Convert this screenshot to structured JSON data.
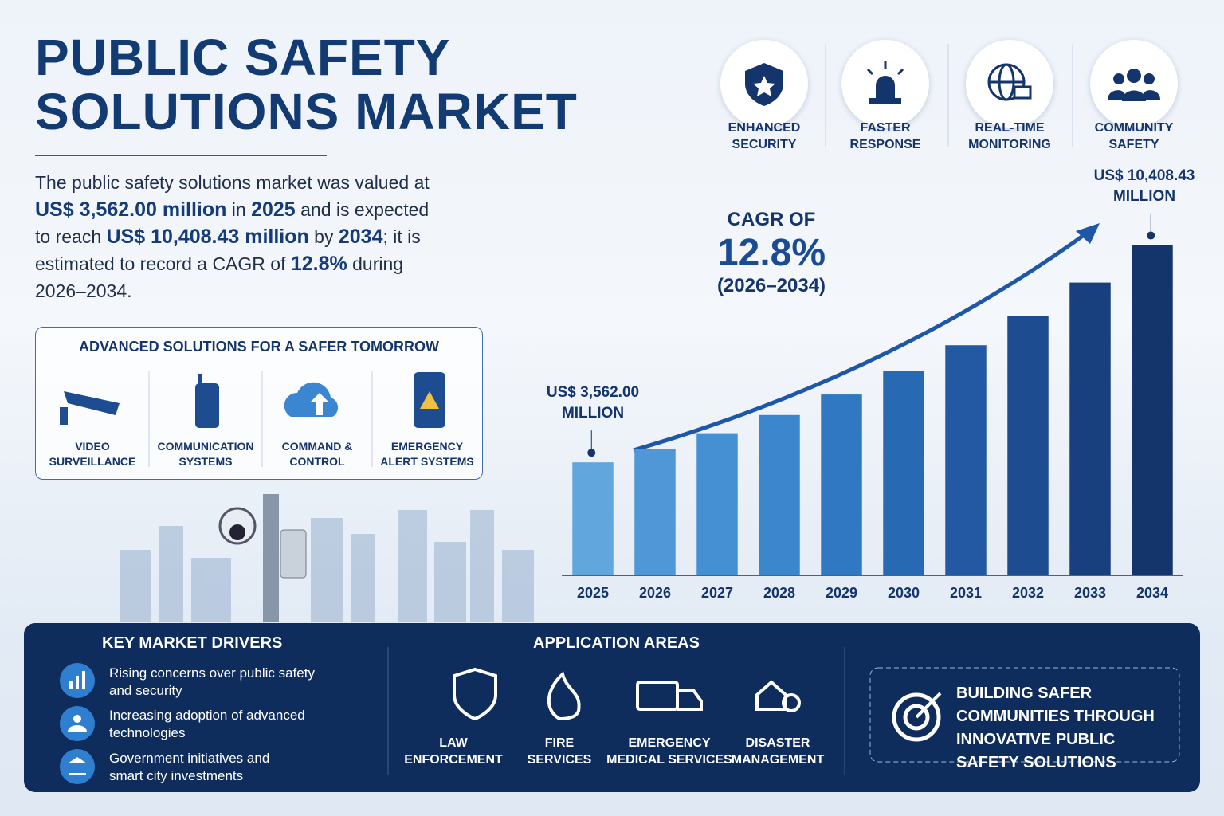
{
  "header": {
    "title": "PUBLIC SAFETY SOLUTIONS MARKET",
    "intro": [
      "The public safety solutions market was valued at ",
      "US$ 3,562.00 million",
      " in ",
      "2025",
      " and is expected to reach ",
      "US$ 10,408.43 million",
      " by ",
      "2034",
      "; it is estimated to record a CAGR of ",
      "12.8%",
      " during 2026–2034."
    ]
  },
  "features": [
    "ENHANCED SECURITY",
    "FASTER RESPONSE",
    "REAL-TIME MONITORING",
    "COMMUNITY SAFETY"
  ],
  "solutions": {
    "title": "ADVANCED SOLUTIONS FOR A SAFER TOMORROW",
    "items": [
      "VIDEO SURVEILLANCE",
      "COMMUNICATION SYSTEMS",
      "COMMAND & CONTROL",
      "EMERGENCY ALERT SYSTEMS"
    ]
  },
  "chart_data": {
    "type": "bar",
    "categories": [
      "2025",
      "2026",
      "2027",
      "2028",
      "2029",
      "2030",
      "2031",
      "2032",
      "2033",
      "2034"
    ],
    "values": [
      3562,
      3971,
      4479,
      5053,
      5699,
      6429,
      7252,
      8180,
      9227,
      10408.43
    ],
    "value_labels": [
      "US$ 3,562.00 MILLION",
      null,
      null,
      null,
      null,
      null,
      null,
      null,
      null,
      "US$ 10,408.43 MILLION"
    ],
    "colors": [
      "#62a6de",
      "#4f97d6",
      "#4590d3",
      "#3b86cc",
      "#3079c2",
      "#2869b3",
      "#2259a2",
      "#1d4c91",
      "#183f7e",
      "#14346c"
    ],
    "ylim": [
      0,
      11000
    ],
    "annotation": {
      "title": "CAGR OF",
      "value": "12.8%",
      "period": "(2026–2034)"
    }
  },
  "drivers": {
    "title": "KEY MARKET DRIVERS",
    "items": [
      "Rising concerns over public safety and security",
      "Increasing adoption of advanced technologies",
      "Government initiatives and smart city investments"
    ]
  },
  "applications": {
    "title": "APPLICATION AREAS",
    "items": [
      "LAW ENFORCEMENT",
      "FIRE SERVICES",
      "EMERGENCY MEDICAL SERVICES",
      "DISASTER MANAGEMENT"
    ]
  },
  "tagline": "BUILDING SAFER COMMUNITIES THROUGH INNOVATIVE PUBLIC SAFETY SOLUTIONS"
}
